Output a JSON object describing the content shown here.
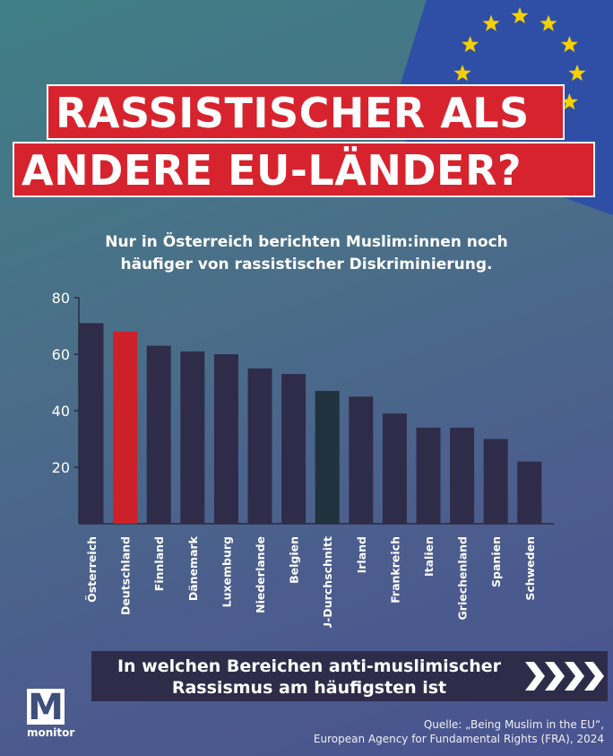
{
  "headline": {
    "line1": "RASSISTISCHER ALS",
    "line2": "ANDERE EU-LÄNDER?"
  },
  "subtitle": {
    "line1": "Nur in Österreich berichten Muslim:innen noch",
    "line2": "häufiger von rassistischer Diskriminierung."
  },
  "chart_data": {
    "type": "bar",
    "title": "Nur in Österreich berichten Muslim:innen noch häufiger von rassistischer Diskriminierung.",
    "xlabel": "",
    "ylabel": "",
    "ylim": [
      0,
      80
    ],
    "yticks": [
      20,
      40,
      60,
      80
    ],
    "grid": false,
    "categories": [
      "Österreich",
      "Deutschland",
      "Finnland",
      "Dänemark",
      "Luxemburg",
      "Niederlande",
      "Belgien",
      "EU-Durchschnitt",
      "Irland",
      "Frankreich",
      "Italien",
      "Griechenland",
      "Spanien",
      "Schweden"
    ],
    "values": [
      71,
      68,
      63,
      61,
      60,
      55,
      53,
      47,
      45,
      39,
      34,
      34,
      30,
      22
    ],
    "bar_colors": [
      "#2f2c4a",
      "#cc2128",
      "#2f2c4a",
      "#2f2c4a",
      "#2f2c4a",
      "#2f2c4a",
      "#2f2c4a",
      "#20323d",
      "#2f2c4a",
      "#2f2c4a",
      "#2f2c4a",
      "#2f2c4a",
      "#2f2c4a",
      "#2f2c4a"
    ]
  },
  "banner": {
    "line1": "In welchen Bereichen anti-muslimischer",
    "line2": "Rassismus am häufigsten ist",
    "icon": "chevron-right-icon"
  },
  "logo": {
    "letter": "M",
    "word": "monitor"
  },
  "source": {
    "line1": "Quelle: „Being Muslim in the EU“,",
    "line2": "European Agency for Fundamental Rights (FRA), 2024"
  },
  "colors": {
    "headline_bg": "#d7232d",
    "bar_default": "#2f2c4a",
    "bar_highlight": "#cc2128",
    "eu_flag": "#2f4fa6",
    "eu_star": "#f5d000"
  }
}
